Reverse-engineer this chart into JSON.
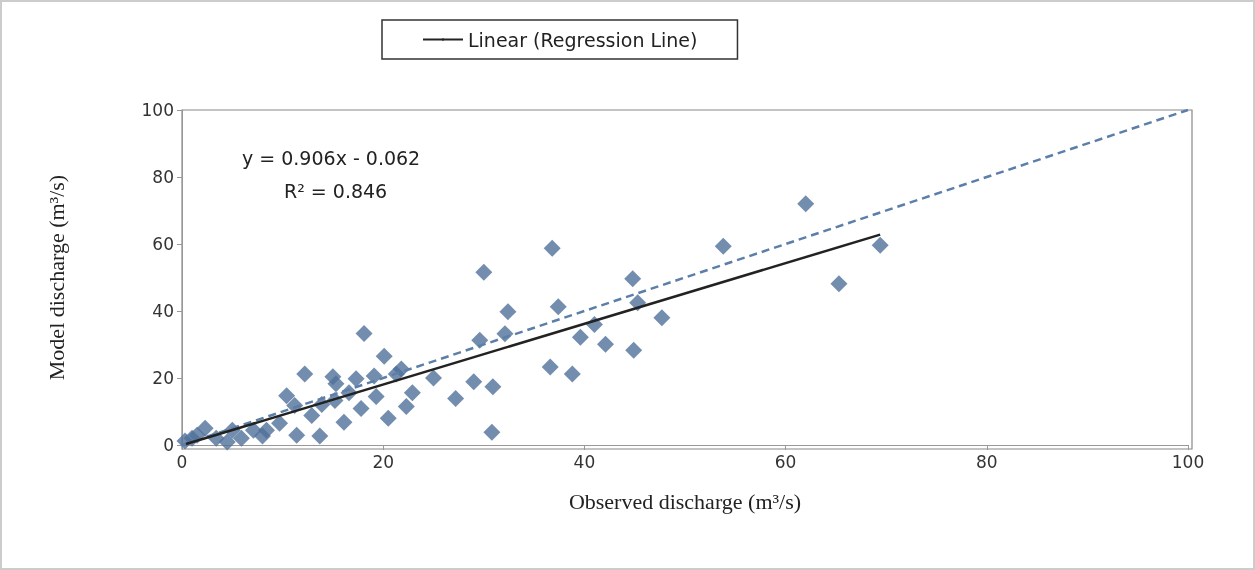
{
  "chart_data": {
    "type": "scatter",
    "xlabel": "Observed discharge (m³/s)",
    "ylabel": "Model discharge (m³/s)",
    "xlim": [
      0,
      100
    ],
    "xticks": [
      0,
      20,
      40,
      60,
      80,
      100
    ],
    "ylim": [
      0,
      100
    ],
    "yticks": [
      0,
      20,
      40,
      60,
      80,
      100
    ],
    "grid": false,
    "legend": "top",
    "annotations": [
      "y = 0.906x - 0.062",
      "R² = 0.846"
    ],
    "series": [
      {
        "type": "scatter",
        "color": "#50709a",
        "marker": "diamond",
        "x": [
          30,
          36.8,
          37.4,
          32.4,
          32.1,
          29.6,
          29,
          30.9,
          30.8,
          27.2,
          36.6,
          38.8,
          39.6,
          41,
          42.1,
          44.8,
          45.3,
          44.9,
          47.7,
          53.8,
          62,
          65.3,
          69.4,
          25,
          22.9,
          22.3,
          20.5,
          20.1,
          18.1,
          21.3,
          19.1,
          19.3,
          17.3,
          16.6,
          16.1,
          15,
          15.2,
          13.9,
          13.7,
          12.2,
          11.2,
          10.4,
          11.4,
          9.7,
          8,
          7.1,
          5,
          2.3,
          1.5,
          0.3,
          1,
          3.4,
          5.9,
          4.5,
          8.4,
          12.9,
          15.3,
          17.8,
          21.8
        ],
        "values": [
          51.6,
          58.7,
          41.3,
          39.8,
          33.2,
          31.3,
          18.9,
          17.4,
          3.8,
          13.9,
          23.3,
          21.2,
          32.2,
          36,
          30.1,
          49.6,
          42.5,
          28.3,
          38,
          59.3,
          72,
          48.1,
          59.6,
          20,
          15.6,
          11.5,
          8,
          26.5,
          33.3,
          21.2,
          20.6,
          14.5,
          19.8,
          15.6,
          6.8,
          20.4,
          13.3,
          12.1,
          2.7,
          21.2,
          11.8,
          14.7,
          2.9,
          6.5,
          2.7,
          4.4,
          4.4,
          5,
          2.9,
          1.2,
          2,
          2,
          2,
          0.9,
          4.4,
          8.8,
          18.3,
          10.9,
          22.7
        ]
      },
      {
        "type": "line",
        "color": "#5b7fa8",
        "line_style": "dashed",
        "marker": "none",
        "x": [
          0,
          100
        ],
        "values": [
          0,
          100
        ]
      },
      {
        "type": "line",
        "name": "Linear (Regression Line)",
        "color": "#222222",
        "line_style": "solid",
        "marker": "none",
        "x": [
          0.4,
          69.4
        ],
        "values": [
          0.3,
          62.8
        ]
      }
    ]
  }
}
